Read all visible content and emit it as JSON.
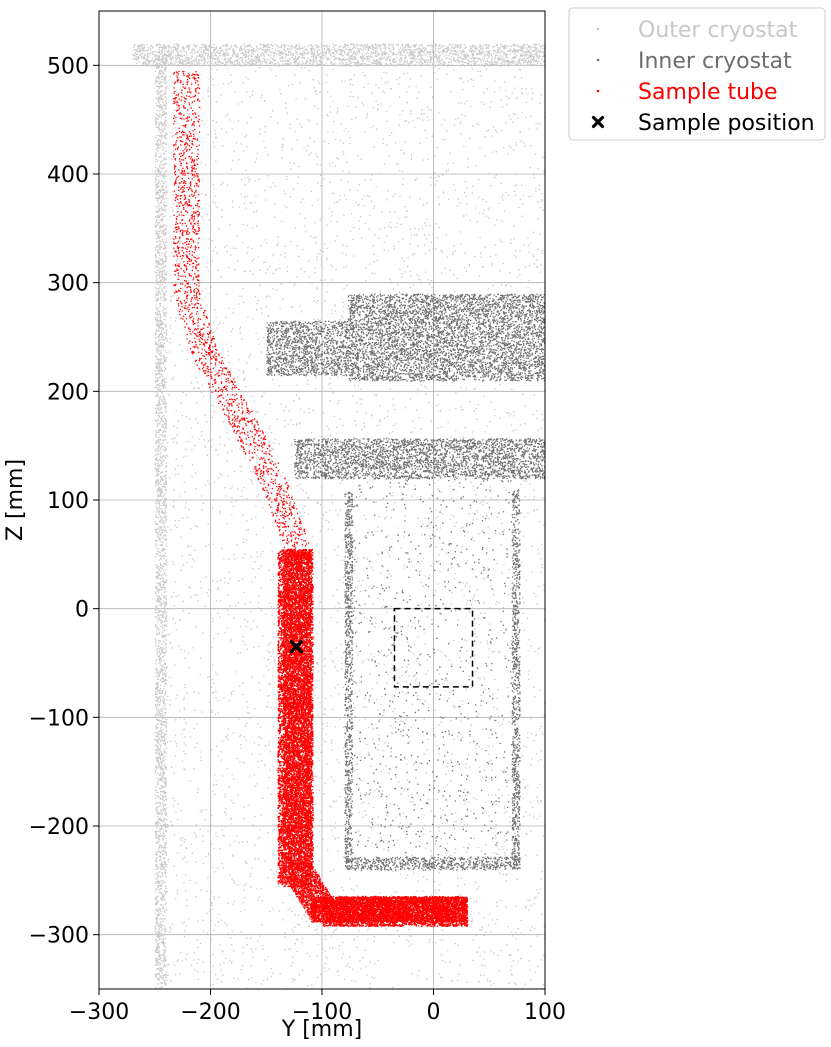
{
  "chart_data": {
    "type": "scatter",
    "xlabel": "Y [mm]",
    "ylabel": "Z [mm]",
    "xlim": [
      -300,
      100
    ],
    "ylim": [
      -350,
      550
    ],
    "x_ticks": [
      -300,
      -200,
      -100,
      0,
      100
    ],
    "x_tick_labels": [
      "−300",
      "−200",
      "−100",
      "0",
      "100"
    ],
    "y_ticks": [
      -300,
      -200,
      -100,
      0,
      100,
      200,
      300,
      400,
      500
    ],
    "y_tick_labels": [
      "−300",
      "−200",
      "−100",
      "0",
      "100",
      "200",
      "300",
      "400",
      "500"
    ],
    "grid": true,
    "legend_position": "outside-top-right",
    "series": [
      {
        "name": "Outer cryostat",
        "color": "#c8c8c8",
        "marker": "point",
        "regions": [
          {
            "y_range": [
              -270,
              100
            ],
            "z_range": [
              500,
              520
            ],
            "density": "dense"
          },
          {
            "y_range": [
              -250,
              -240
            ],
            "z_range": [
              -350,
              510
            ],
            "density": "dense"
          },
          {
            "y_range": [
              -240,
              100
            ],
            "z_range": [
              -350,
              500
            ],
            "density": "sparse"
          }
        ]
      },
      {
        "name": "Inner cryostat",
        "color": "#6e6e6e",
        "marker": "point",
        "regions": [
          {
            "y_range": [
              -77,
              100
            ],
            "z_range": [
              210,
              290
            ],
            "density": "dense"
          },
          {
            "y_range": [
              -150,
              -77
            ],
            "z_range": [
              215,
              265
            ],
            "density": "dense"
          },
          {
            "y_range": [
              -125,
              100
            ],
            "z_range": [
              120,
              157
            ],
            "density": "dense"
          },
          {
            "y_range": [
              -80,
              -73
            ],
            "z_range": [
              -235,
              110
            ],
            "density": "dense"
          },
          {
            "y_range": [
              70,
              77
            ],
            "z_range": [
              -235,
              110
            ],
            "density": "dense"
          },
          {
            "y_range": [
              -80,
              77
            ],
            "z_range": [
              -240,
              -228
            ],
            "density": "dense"
          },
          {
            "y_range": [
              -73,
              70
            ],
            "z_range": [
              -228,
              120
            ],
            "density": "sparse"
          }
        ]
      },
      {
        "name": "Sample tube",
        "color": "#ff0000",
        "marker": "point",
        "path_center": [
          [
            -222,
            495
          ],
          [
            -222,
            290
          ],
          [
            -205,
            235
          ],
          [
            -175,
            180
          ],
          [
            -145,
            120
          ],
          [
            -122,
            55
          ],
          [
            -122,
            -240
          ],
          [
            -100,
            -278
          ],
          [
            30,
            -278
          ]
        ],
        "vertical_section": {
          "y_range": [
            -140,
            -110
          ],
          "z_range": [
            -255,
            55
          ]
        },
        "horizontal_section": {
          "y_range": [
            -110,
            30
          ],
          "z_range": [
            -288,
            -265
          ]
        }
      },
      {
        "name": "Sample position",
        "color": "#000000",
        "marker": "x",
        "points": [
          {
            "x": -123,
            "y": -35
          }
        ]
      }
    ],
    "annotations": [
      {
        "type": "dashed_rectangle",
        "x_range": [
          -35,
          35
        ],
        "y_range": [
          -72,
          0
        ],
        "color": "#000000"
      }
    ]
  }
}
